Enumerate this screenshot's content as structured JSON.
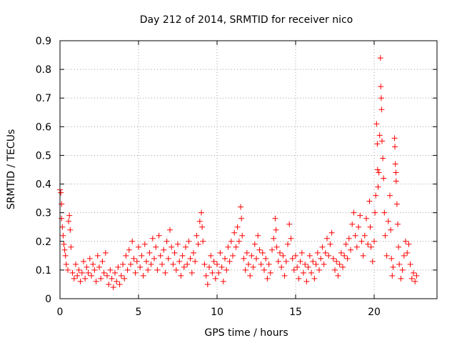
{
  "chart_data": {
    "type": "scatter",
    "title": "Day 212 of 2014, SRMTID for receiver nico",
    "xlabel": "GPS time / hours",
    "ylabel": "SRMTID / TECUs",
    "xlim": [
      0,
      24
    ],
    "ylim": [
      0,
      0.9
    ],
    "xticks": [
      0,
      5,
      10,
      15,
      20
    ],
    "xtick_labels": [
      "0",
      "5",
      "10",
      "15",
      "20"
    ],
    "yticks": [
      0,
      0.1,
      0.2,
      0.3,
      0.4,
      0.5,
      0.6,
      0.7,
      0.8,
      0.9
    ],
    "ytick_labels": [
      "0",
      "0.1",
      "0.2",
      "0.3",
      "0.4",
      "0.5",
      "0.6",
      "0.7",
      "0.8",
      "0.9"
    ],
    "grid": true,
    "marker": "+",
    "marker_color": "#ff0000",
    "series": [
      {
        "name": "SRMTID",
        "points": [
          [
            0.0,
            0.38
          ],
          [
            0.05,
            0.37
          ],
          [
            0.1,
            0.33
          ],
          [
            0.1,
            0.28
          ],
          [
            0.15,
            0.25
          ],
          [
            0.2,
            0.22
          ],
          [
            0.25,
            0.19
          ],
          [
            0.3,
            0.17
          ],
          [
            0.35,
            0.15
          ],
          [
            0.4,
            0.12
          ],
          [
            0.5,
            0.1
          ],
          [
            0.55,
            0.27
          ],
          [
            0.6,
            0.29
          ],
          [
            0.65,
            0.24
          ],
          [
            0.7,
            0.18
          ],
          [
            0.8,
            0.09
          ],
          [
            0.9,
            0.07
          ],
          [
            1.0,
            0.12
          ],
          [
            1.1,
            0.08
          ],
          [
            1.2,
            0.1
          ],
          [
            1.3,
            0.06
          ],
          [
            1.4,
            0.09
          ],
          [
            1.5,
            0.13
          ],
          [
            1.6,
            0.07
          ],
          [
            1.7,
            0.11
          ],
          [
            1.8,
            0.09
          ],
          [
            1.9,
            0.14
          ],
          [
            2.0,
            0.08
          ],
          [
            2.1,
            0.12
          ],
          [
            2.2,
            0.1
          ],
          [
            2.3,
            0.06
          ],
          [
            2.4,
            0.15
          ],
          [
            2.5,
            0.11
          ],
          [
            2.6,
            0.07
          ],
          [
            2.7,
            0.13
          ],
          [
            2.8,
            0.09
          ],
          [
            2.9,
            0.16
          ],
          [
            3.0,
            0.08
          ],
          [
            3.1,
            0.05
          ],
          [
            3.2,
            0.1
          ],
          [
            3.3,
            0.07
          ],
          [
            3.4,
            0.04
          ],
          [
            3.5,
            0.09
          ],
          [
            3.6,
            0.06
          ],
          [
            3.7,
            0.11
          ],
          [
            3.8,
            0.05
          ],
          [
            3.9,
            0.08
          ],
          [
            4.0,
            0.12
          ],
          [
            4.1,
            0.07
          ],
          [
            4.2,
            0.15
          ],
          [
            4.3,
            0.1
          ],
          [
            4.4,
            0.17
          ],
          [
            4.5,
            0.12
          ],
          [
            4.6,
            0.2
          ],
          [
            4.7,
            0.14
          ],
          [
            4.8,
            0.09
          ],
          [
            4.9,
            0.13
          ],
          [
            5.0,
            0.18
          ],
          [
            5.1,
            0.11
          ],
          [
            5.2,
            0.15
          ],
          [
            5.3,
            0.08
          ],
          [
            5.4,
            0.19
          ],
          [
            5.5,
            0.13
          ],
          [
            5.6,
            0.1
          ],
          [
            5.7,
            0.16
          ],
          [
            5.8,
            0.12
          ],
          [
            5.9,
            0.21
          ],
          [
            6.0,
            0.14
          ],
          [
            6.1,
            0.18
          ],
          [
            6.2,
            0.1
          ],
          [
            6.3,
            0.22
          ],
          [
            6.4,
            0.15
          ],
          [
            6.5,
            0.12
          ],
          [
            6.6,
            0.17
          ],
          [
            6.7,
            0.09
          ],
          [
            6.8,
            0.2
          ],
          [
            6.9,
            0.14
          ],
          [
            7.0,
            0.24
          ],
          [
            7.1,
            0.18
          ],
          [
            7.2,
            0.12
          ],
          [
            7.3,
            0.16
          ],
          [
            7.4,
            0.1
          ],
          [
            7.5,
            0.19
          ],
          [
            7.6,
            0.13
          ],
          [
            7.7,
            0.08
          ],
          [
            7.8,
            0.15
          ],
          [
            7.9,
            0.11
          ],
          [
            8.0,
            0.18
          ],
          [
            8.1,
            0.12
          ],
          [
            8.2,
            0.2
          ],
          [
            8.3,
            0.14
          ],
          [
            8.4,
            0.09
          ],
          [
            8.5,
            0.16
          ],
          [
            8.6,
            0.13
          ],
          [
            8.7,
            0.22
          ],
          [
            8.8,
            0.19
          ],
          [
            8.9,
            0.27
          ],
          [
            9.0,
            0.3
          ],
          [
            9.05,
            0.25
          ],
          [
            9.1,
            0.2
          ],
          [
            9.2,
            0.12
          ],
          [
            9.3,
            0.08
          ],
          [
            9.4,
            0.05
          ],
          [
            9.5,
            0.11
          ],
          [
            9.6,
            0.15
          ],
          [
            9.7,
            0.09
          ],
          [
            9.8,
            0.13
          ],
          [
            9.9,
            0.07
          ],
          [
            10.0,
            0.12
          ],
          [
            10.1,
            0.09
          ],
          [
            10.2,
            0.16
          ],
          [
            10.3,
            0.11
          ],
          [
            10.4,
            0.06
          ],
          [
            10.5,
            0.14
          ],
          [
            10.6,
            0.1
          ],
          [
            10.7,
            0.18
          ],
          [
            10.8,
            0.13
          ],
          [
            10.9,
            0.2
          ],
          [
            11.0,
            0.15
          ],
          [
            11.1,
            0.23
          ],
          [
            11.2,
            0.18
          ],
          [
            11.3,
            0.25
          ],
          [
            11.4,
            0.2
          ],
          [
            11.5,
            0.32
          ],
          [
            11.55,
            0.28
          ],
          [
            11.6,
            0.22
          ],
          [
            11.7,
            0.14
          ],
          [
            11.8,
            0.1
          ],
          [
            11.9,
            0.16
          ],
          [
            12.0,
            0.12
          ],
          [
            12.1,
            0.08
          ],
          [
            12.2,
            0.15
          ],
          [
            12.3,
            0.11
          ],
          [
            12.4,
            0.19
          ],
          [
            12.5,
            0.14
          ],
          [
            12.6,
            0.22
          ],
          [
            12.7,
            0.17
          ],
          [
            12.8,
            0.12
          ],
          [
            12.9,
            0.16
          ],
          [
            13.0,
            0.1
          ],
          [
            13.1,
            0.14
          ],
          [
            13.2,
            0.07
          ],
          [
            13.3,
            0.12
          ],
          [
            13.4,
            0.09
          ],
          [
            13.5,
            0.17
          ],
          [
            13.6,
            0.21
          ],
          [
            13.7,
            0.28
          ],
          [
            13.75,
            0.24
          ],
          [
            13.8,
            0.18
          ],
          [
            13.9,
            0.13
          ],
          [
            14.0,
            0.16
          ],
          [
            14.1,
            0.11
          ],
          [
            14.2,
            0.15
          ],
          [
            14.3,
            0.08
          ],
          [
            14.4,
            0.13
          ],
          [
            14.5,
            0.19
          ],
          [
            14.6,
            0.26
          ],
          [
            14.7,
            0.21
          ],
          [
            14.8,
            0.14
          ],
          [
            14.9,
            0.1
          ],
          [
            15.0,
            0.15
          ],
          [
            15.1,
            0.11
          ],
          [
            15.2,
            0.07
          ],
          [
            15.3,
            0.13
          ],
          [
            15.4,
            0.16
          ],
          [
            15.5,
            0.09
          ],
          [
            15.6,
            0.12
          ],
          [
            15.7,
            0.06
          ],
          [
            15.8,
            0.11
          ],
          [
            15.9,
            0.15
          ],
          [
            16.0,
            0.09
          ],
          [
            16.1,
            0.13
          ],
          [
            16.2,
            0.07
          ],
          [
            16.3,
            0.12
          ],
          [
            16.4,
            0.16
          ],
          [
            16.5,
            0.1
          ],
          [
            16.6,
            0.14
          ],
          [
            16.7,
            0.18
          ],
          [
            16.8,
            0.12
          ],
          [
            16.9,
            0.16
          ],
          [
            17.0,
            0.21
          ],
          [
            17.1,
            0.15
          ],
          [
            17.2,
            0.19
          ],
          [
            17.3,
            0.23
          ],
          [
            17.4,
            0.14
          ],
          [
            17.5,
            0.1
          ],
          [
            17.6,
            0.13
          ],
          [
            17.7,
            0.08
          ],
          [
            17.8,
            0.12
          ],
          [
            17.9,
            0.16
          ],
          [
            18.0,
            0.11
          ],
          [
            18.1,
            0.15
          ],
          [
            18.2,
            0.19
          ],
          [
            18.3,
            0.14
          ],
          [
            18.4,
            0.21
          ],
          [
            18.5,
            0.17
          ],
          [
            18.6,
            0.26
          ],
          [
            18.7,
            0.3
          ],
          [
            18.8,
            0.22
          ],
          [
            18.9,
            0.18
          ],
          [
            19.0,
            0.25
          ],
          [
            19.1,
            0.29
          ],
          [
            19.2,
            0.2
          ],
          [
            19.3,
            0.15
          ],
          [
            19.4,
            0.22
          ],
          [
            19.5,
            0.28
          ],
          [
            19.6,
            0.19
          ],
          [
            19.7,
            0.34
          ],
          [
            19.75,
            0.25
          ],
          [
            19.8,
            0.18
          ],
          [
            19.9,
            0.13
          ],
          [
            20.0,
            0.2
          ],
          [
            20.05,
            0.3
          ],
          [
            20.1,
            0.36
          ],
          [
            20.15,
            0.61
          ],
          [
            20.2,
            0.54
          ],
          [
            20.22,
            0.45
          ],
          [
            20.25,
            0.39
          ],
          [
            20.3,
            0.44
          ],
          [
            20.35,
            0.57
          ],
          [
            20.4,
            0.84
          ],
          [
            20.42,
            0.74
          ],
          [
            20.45,
            0.7
          ],
          [
            20.47,
            0.66
          ],
          [
            20.5,
            0.55
          ],
          [
            20.55,
            0.49
          ],
          [
            20.6,
            0.42
          ],
          [
            20.65,
            0.3
          ],
          [
            20.7,
            0.22
          ],
          [
            20.8,
            0.15
          ],
          [
            20.9,
            0.27
          ],
          [
            21.0,
            0.36
          ],
          [
            21.05,
            0.24
          ],
          [
            21.1,
            0.14
          ],
          [
            21.15,
            0.08
          ],
          [
            21.2,
            0.11
          ],
          [
            21.3,
            0.56
          ],
          [
            21.32,
            0.53
          ],
          [
            21.35,
            0.47
          ],
          [
            21.38,
            0.44
          ],
          [
            21.4,
            0.41
          ],
          [
            21.45,
            0.33
          ],
          [
            21.5,
            0.26
          ],
          [
            21.55,
            0.18
          ],
          [
            21.6,
            0.12
          ],
          [
            21.7,
            0.07
          ],
          [
            21.8,
            0.1
          ],
          [
            21.9,
            0.15
          ],
          [
            22.0,
            0.2
          ],
          [
            22.1,
            0.16
          ],
          [
            22.2,
            0.19
          ],
          [
            22.3,
            0.12
          ],
          [
            22.4,
            0.07
          ],
          [
            22.5,
            0.09
          ],
          [
            22.6,
            0.06
          ],
          [
            22.7,
            0.08
          ]
        ]
      }
    ]
  }
}
